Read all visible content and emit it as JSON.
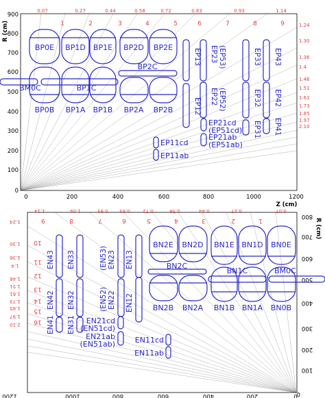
{
  "colors": {
    "chamber": "#2828c8",
    "eta": "#e04040",
    "rays": "#9a9a9a",
    "axes": "#000000"
  },
  "panel_top": {
    "r_axis": {
      "label": "R (cm)",
      "ticks": [
        "0",
        "100",
        "200",
        "300",
        "400",
        "500",
        "600",
        "700",
        "800",
        "900"
      ]
    },
    "z_axis": {
      "label": "Z (cm)",
      "ticks": [
        "0",
        "200",
        "400",
        "600",
        "800",
        "1000",
        "1200"
      ]
    },
    "eta_top": [
      "0.07",
      "0.27",
      "0.44",
      "0.58",
      "0.72",
      "0.83",
      "0.93",
      "1.14"
    ],
    "eta_right": [
      "1.24",
      "1.30",
      "1.36",
      "1.4",
      "1.46",
      "1.51",
      "1.61",
      "1.73",
      "1.85",
      "1.97",
      "2.10"
    ],
    "sectors": [
      "1",
      "2",
      "3",
      "4",
      "5",
      "6",
      "7",
      "8",
      "9"
    ],
    "chambers": {
      "BP0E": "BP0E",
      "BP1D": "BP1D",
      "BP1E": "BP1E",
      "BP2D": "BP2D",
      "BP2E": "BP2E",
      "BM0C": "BM0C",
      "BP1C": "BP1C",
      "BP2C": "BP2C",
      "BP0B": "BP0B",
      "BP1A": "BP1A",
      "BP1B": "BP1B",
      "BP2A": "BP2A",
      "BP2B": "BP2B",
      "EP13": "EP13",
      "EP23": "EP23",
      "EP53": "(EP53)",
      "EP33": "EP33",
      "EP43": "EP43",
      "EP12": "EP12",
      "EP22": "EP22",
      "EP52": "(EP52)",
      "EP32": "EP32",
      "EP42": "EP42",
      "EP21cd": "EP21cd",
      "EP51cd": "(EP51cd)",
      "EP21ab": "EP21ab",
      "EP51ab": "(EP51ab)",
      "EP31": "EP31",
      "EP41": "EP41",
      "EP11cd": "EP11cd",
      "EP11ab": "EP11ab"
    }
  },
  "panel_bottom": {
    "r_axis": {
      "label": "R (cm)",
      "ticks": [
        "0",
        "100",
        "200",
        "300",
        "400",
        "500",
        "600",
        "700",
        "800"
      ]
    },
    "z_axis": {
      "ticks": [
        "0",
        "200",
        "400",
        "600",
        "800",
        "1000",
        "1200"
      ]
    },
    "eta_top": [
      "0.07",
      "0.27",
      "0.44",
      "0.58",
      "0.72",
      "0.83",
      "0.93",
      "1.04",
      "1.14"
    ],
    "eta_left": [
      "1.24",
      "1.30",
      "1.36",
      "1.4",
      "1.46",
      "1.51",
      "1.61",
      "1.73",
      "1.85",
      "1.97",
      "2.10"
    ],
    "sectors": [
      "1",
      "2",
      "3",
      "4",
      "5",
      "6",
      "7",
      "8",
      "9",
      "10",
      "11",
      "12",
      "13",
      "14",
      "15",
      "16"
    ],
    "chambers": {
      "BN2E": "BN2E",
      "BN2D": "BN2D",
      "BN1E": "BN1E",
      "BN1D": "BN1D",
      "BN0E": "BN0E",
      "BN2C": "BN2C",
      "BN1C": "BN1C",
      "BM0C": "BM0C",
      "BN2B": "BN2B",
      "BN2A": "BN2A",
      "BN1B": "BN1B",
      "BN1A": "BN1A",
      "BN0B": "BN0B",
      "EN43": "EN43",
      "EN33": "EN33",
      "EN23": "EN23",
      "EN53": "(EN53)",
      "EN13": "EN13",
      "EN42": "EN42",
      "EN32": "EN32",
      "EN22": "EN22",
      "EN52": "(EN52)",
      "EN12": "EN12",
      "EN41": "EN41",
      "EN31": "EN31",
      "EN21cd": "EN21cd",
      "EN51cd": "(EN51cd)",
      "EN21ab": "EN21ab",
      "EN51ab": "(EN51ab)",
      "EN11cd": "EN11cd",
      "EN11ab": "EN11ab"
    }
  }
}
